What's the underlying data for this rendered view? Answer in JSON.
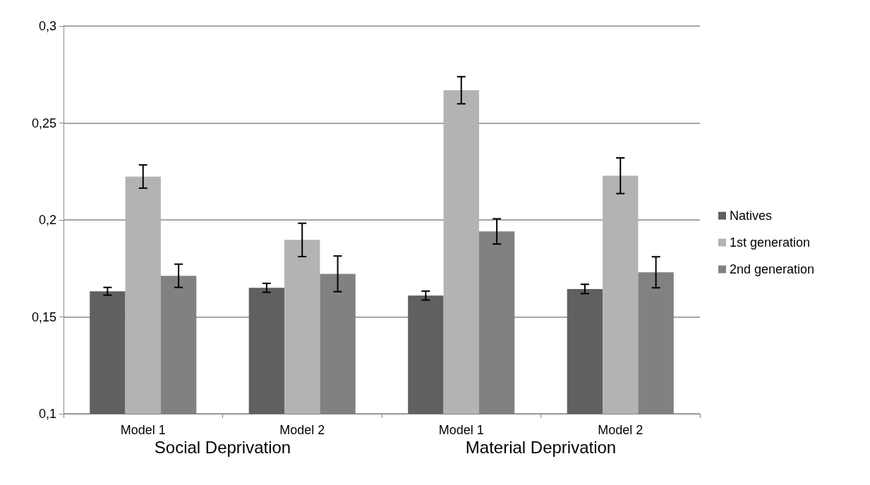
{
  "chart_data": {
    "type": "bar",
    "categories": [
      "Model 1",
      "Model 2",
      "Model 1",
      "Model 2"
    ],
    "annotations": [
      "Social Deprivation",
      "Material Deprivation"
    ],
    "series": [
      {
        "name": "Natives",
        "color": "#606060",
        "values": [
          0.1632,
          0.165,
          0.161,
          0.1644
        ],
        "errors": [
          0.002,
          0.0023,
          0.0023,
          0.0024
        ]
      },
      {
        "name": "1st generation",
        "color": "#b3b3b3",
        "values": [
          0.2224,
          0.1897,
          0.2669,
          0.2228
        ],
        "errors": [
          0.006,
          0.0086,
          0.007,
          0.0092
        ]
      },
      {
        "name": "2nd generation",
        "color": "#818181",
        "values": [
          0.1712,
          0.1722,
          0.1941,
          0.173
        ],
        "errors": [
          0.006,
          0.0092,
          0.0065,
          0.008
        ]
      }
    ],
    "ylim": [
      0.1,
      0.3
    ],
    "yticks": [
      {
        "value": 0.1,
        "label": "0,1"
      },
      {
        "value": 0.15,
        "label": "0,15"
      },
      {
        "value": 0.2,
        "label": "0,2"
      },
      {
        "value": 0.25,
        "label": "0,25"
      },
      {
        "value": 0.3,
        "label": "0,3"
      }
    ],
    "grid": "y",
    "legend": "right"
  }
}
